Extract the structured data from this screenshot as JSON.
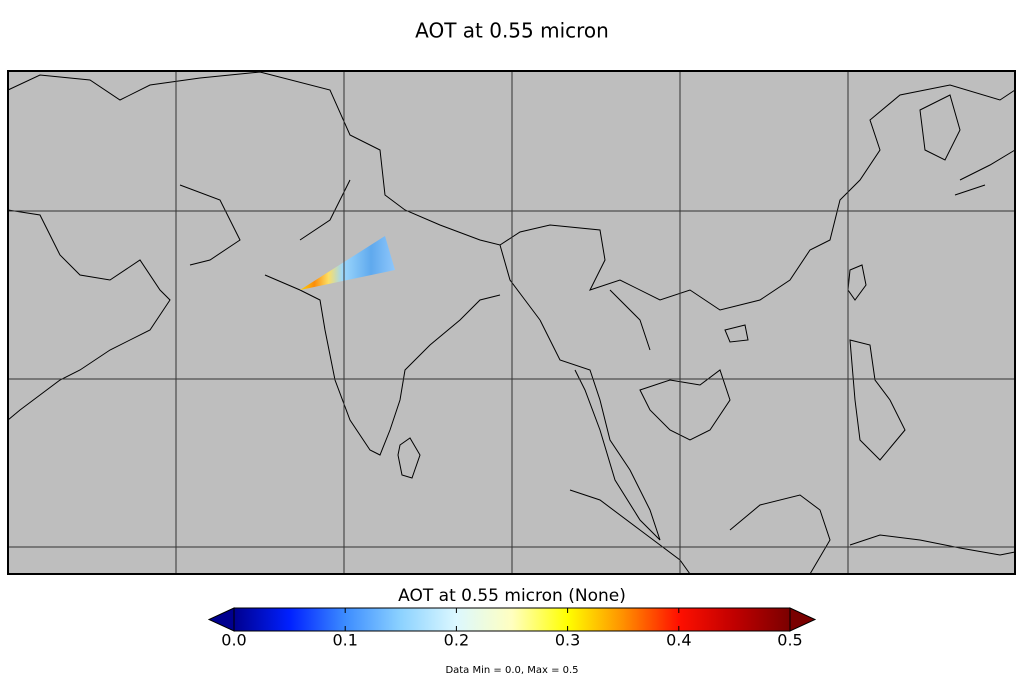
{
  "title": "AOT at 0.55 micron",
  "colorbar": {
    "label": "AOT at 0.55 micron (None)",
    "range": [
      0,
      0.5
    ],
    "ticks": [
      {
        "value": 0,
        "label": "0.0"
      },
      0.1,
      0.2,
      0.3,
      0.4,
      0.5
    ],
    "colors": [
      "#00008f",
      "#0020ff",
      "#3c8cff",
      "#8cd2ff",
      "#dcf8ff",
      "#ffffc0",
      "#ffff00",
      "#ff9000",
      "#ff1000",
      "#c00000",
      "#7a0000"
    ]
  },
  "note": "Data Min = 0.0, Max = 0.5"
}
